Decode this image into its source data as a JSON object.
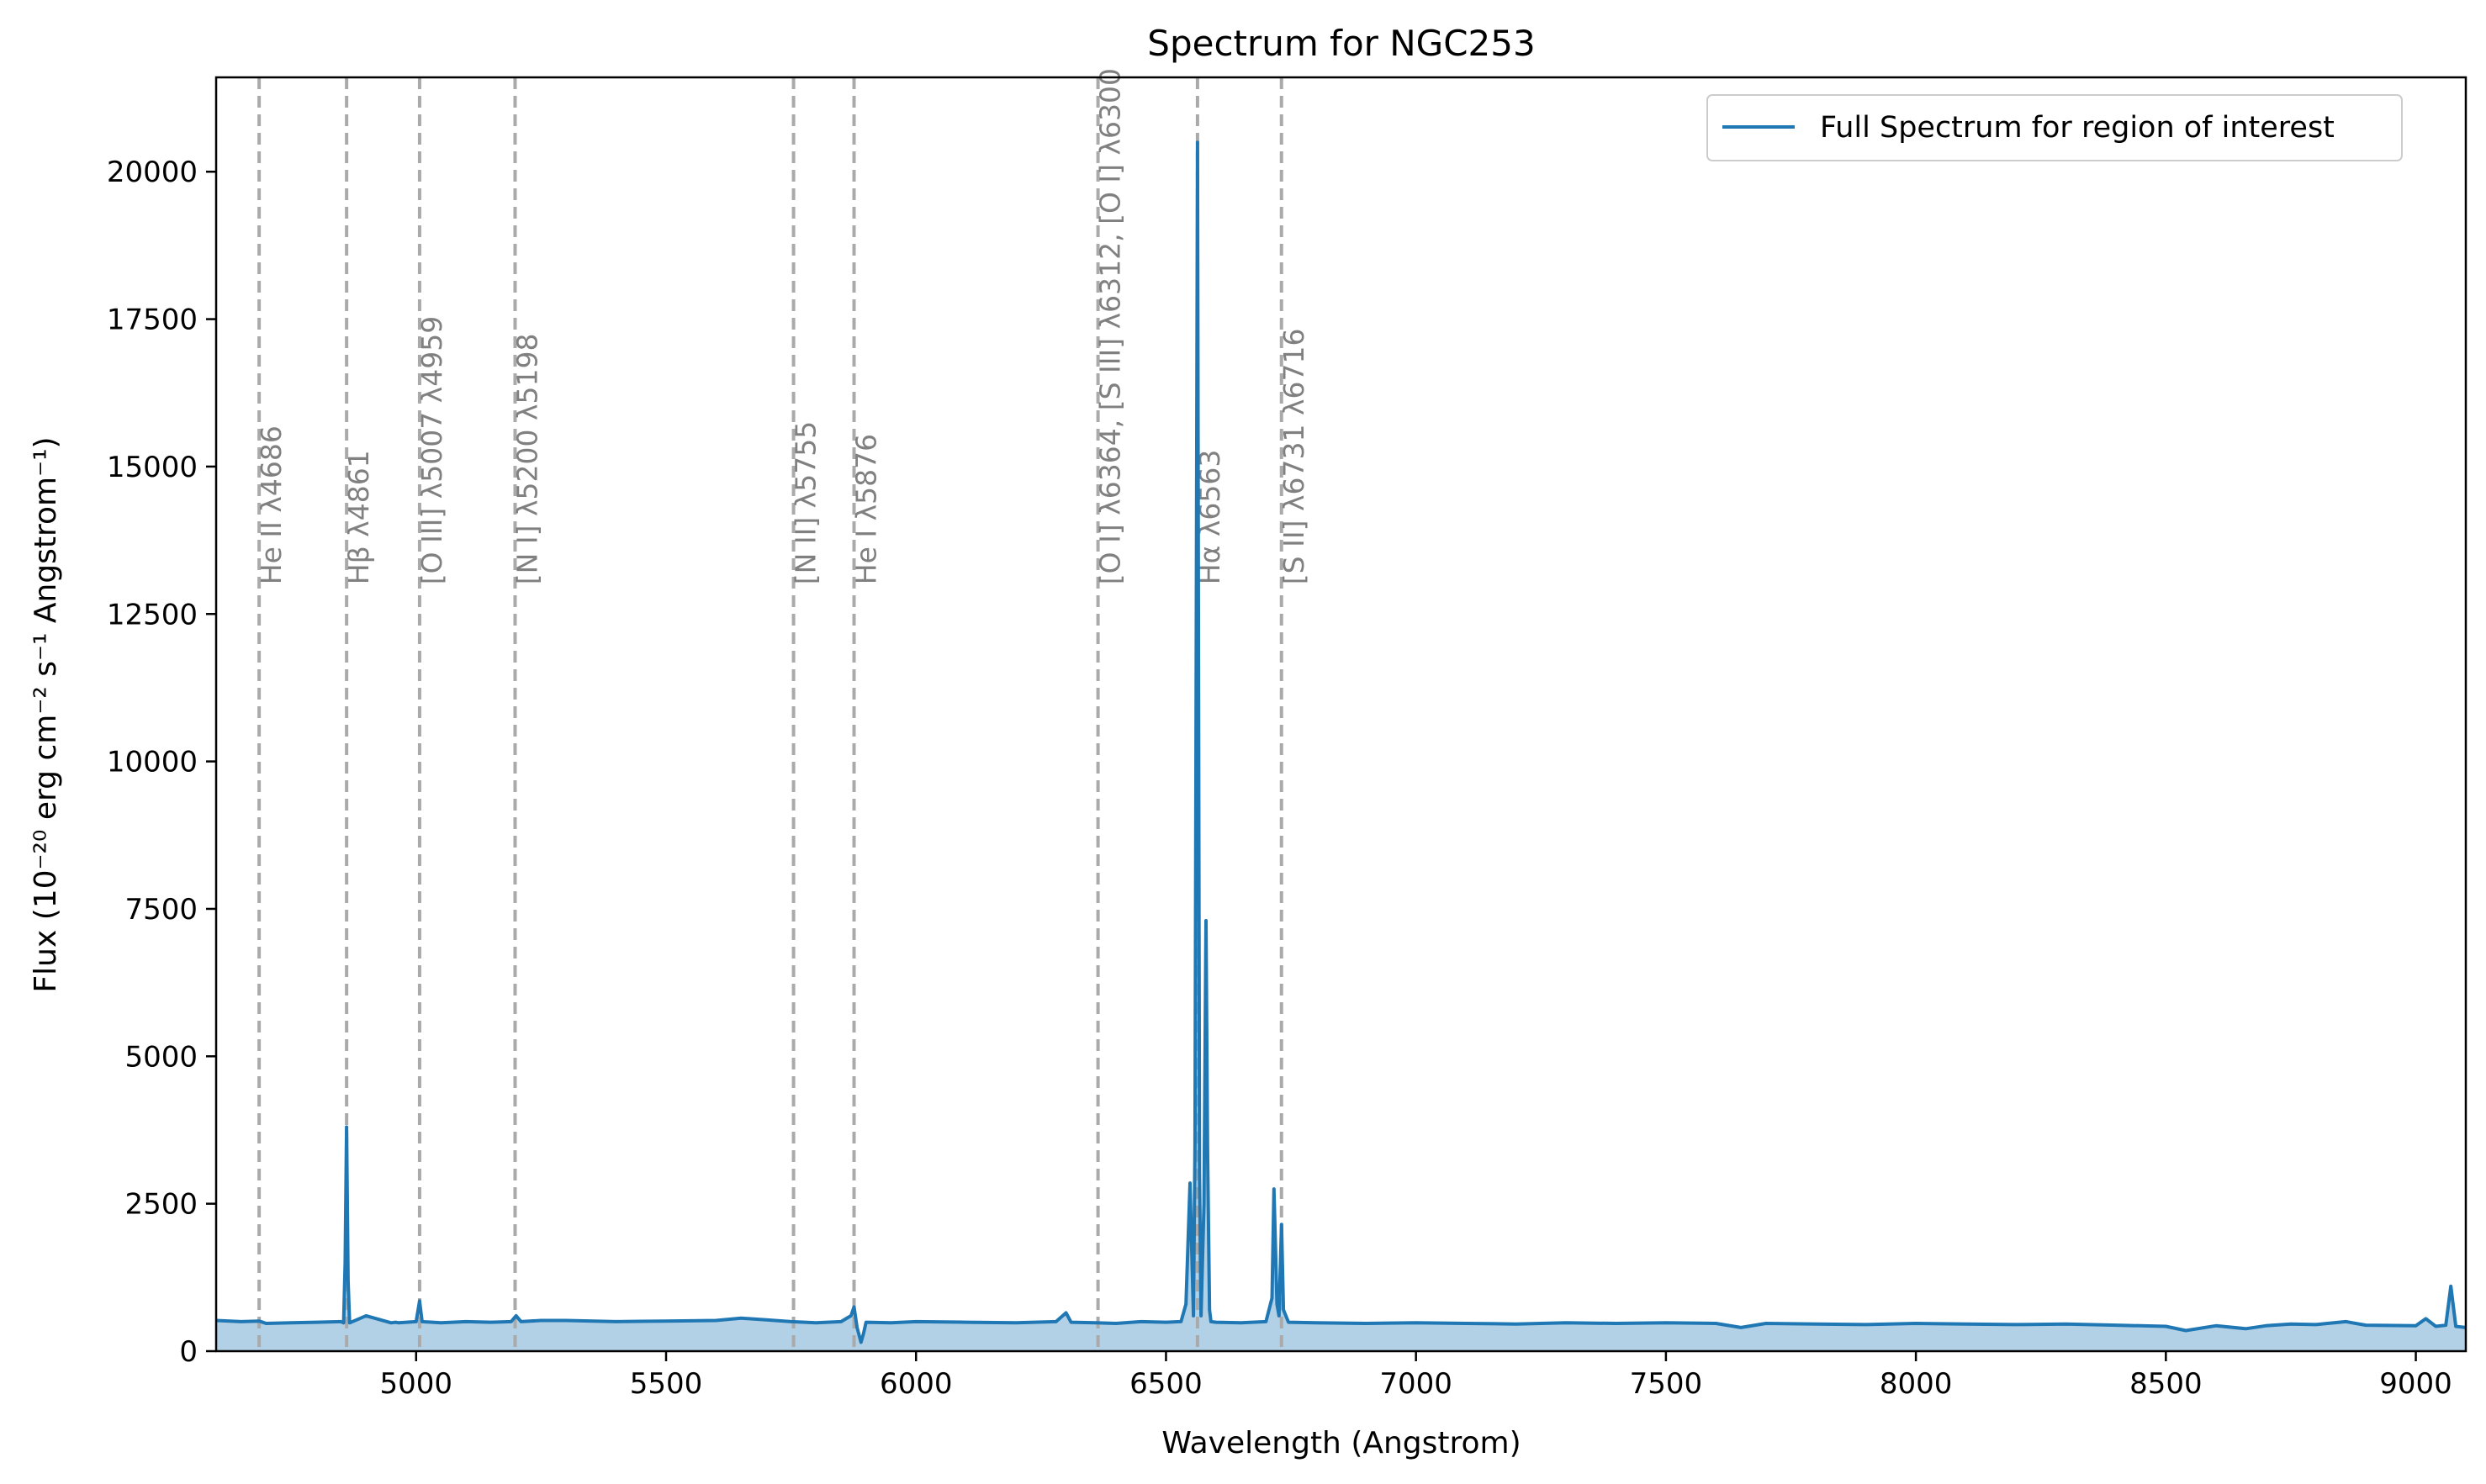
{
  "chart_data": {
    "type": "line",
    "title": "Spectrum for NGC253",
    "xlabel": "Wavelength (Angstrom)",
    "ylabel": "Flux (10⁻²⁰ erg cm⁻² s⁻¹ Angstrom⁻¹)",
    "xlim": [
      4600,
      9100
    ],
    "ylim": [
      0,
      21600
    ],
    "xticks": [
      5000,
      5500,
      6000,
      6500,
      7000,
      7500,
      8000,
      8500,
      9000
    ],
    "yticks": [
      0,
      2500,
      5000,
      7500,
      10000,
      12500,
      15000,
      17500,
      20000
    ],
    "grid": false,
    "legend": {
      "position": "upper-right",
      "label": "Full Spectrum for region of interest"
    },
    "colors": {
      "line": "#1f77b4",
      "fill": "#b3d1e6",
      "reference": "#aaaaaa",
      "reference_text": "#808080"
    },
    "series": [
      {
        "name": "Full Spectrum for region of interest",
        "x": [
          4600,
          4650,
          4686,
          4700,
          4750,
          4800,
          4850,
          4855,
          4858,
          4861,
          4864,
          4867,
          4870,
          4900,
          4950,
          4959,
          4965,
          5000,
          5007,
          5012,
          5050,
          5100,
          5150,
          5190,
          5200,
          5210,
          5250,
          5300,
          5400,
          5500,
          5600,
          5650,
          5700,
          5750,
          5800,
          5850,
          5870,
          5876,
          5882,
          5890,
          5895,
          5900,
          5950,
          6000,
          6100,
          6200,
          6280,
          6300,
          6310,
          6360,
          6400,
          6450,
          6500,
          6530,
          6540,
          6548,
          6555,
          6558,
          6563,
          6567,
          6570,
          6576,
          6580,
          6583,
          6587,
          6590,
          6600,
          6650,
          6700,
          6712,
          6716,
          6722,
          6726,
          6731,
          6735,
          6745,
          6800,
          6900,
          7000,
          7100,
          7200,
          7300,
          7400,
          7500,
          7600,
          7650,
          7700,
          7800,
          7900,
          8000,
          8100,
          8200,
          8300,
          8400,
          8500,
          8540,
          8600,
          8660,
          8700,
          8750,
          8800,
          8860,
          8900,
          9000,
          9020,
          9040,
          9060,
          9070,
          9080,
          9100
        ],
        "y": [
          520,
          500,
          510,
          470,
          480,
          490,
          500,
          480,
          1500,
          3800,
          1200,
          480,
          490,
          600,
          480,
          490,
          480,
          500,
          850,
          500,
          480,
          500,
          490,
          500,
          600,
          500,
          520,
          520,
          500,
          510,
          520,
          560,
          530,
          500,
          480,
          500,
          600,
          750,
          400,
          150,
          300,
          490,
          480,
          500,
          490,
          480,
          500,
          650,
          490,
          480,
          470,
          500,
          490,
          500,
          800,
          2850,
          600,
          3500,
          20500,
          3000,
          600,
          2500,
          7300,
          3500,
          700,
          500,
          490,
          480,
          500,
          900,
          2750,
          800,
          600,
          2150,
          700,
          490,
          480,
          470,
          480,
          470,
          460,
          480,
          470,
          480,
          470,
          400,
          470,
          460,
          450,
          470,
          460,
          450,
          460,
          440,
          420,
          350,
          430,
          380,
          430,
          460,
          450,
          500,
          440,
          430,
          550,
          420,
          440,
          1100,
          420,
          400
        ]
      }
    ],
    "reference_lines": [
      {
        "x": 4686,
        "label": "He II λ4686"
      },
      {
        "x": 4861,
        "label": "Hβ λ4861"
      },
      {
        "x": 5007,
        "label": "[O III] λ5007 λ4959"
      },
      {
        "x": 5198,
        "label": "[N I] λ5200 λ5198"
      },
      {
        "x": 5755,
        "label": "[N II] λ5755"
      },
      {
        "x": 5876,
        "label": "He I λ5876"
      },
      {
        "x": 6364,
        "label": "[O I] λ6364, [S III] λ6312, [O I] λ6300"
      },
      {
        "x": 6563,
        "label": "Hα λ6563"
      },
      {
        "x": 6731,
        "label": "[S II] λ6731 λ6716"
      }
    ]
  }
}
